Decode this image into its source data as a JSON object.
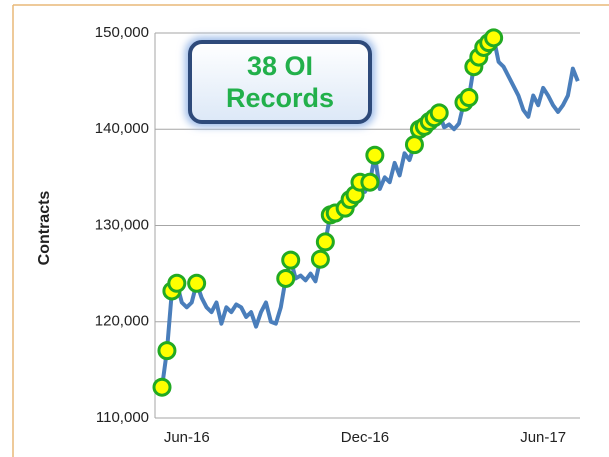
{
  "chart_data": {
    "type": "line",
    "y_label": "Contracts",
    "annotation": [
      "38 OI",
      "Records"
    ],
    "categories": [
      null,
      null,
      null,
      null,
      null,
      "Jun-16",
      null,
      null,
      null,
      null,
      null,
      null,
      null,
      null,
      null,
      null,
      null,
      null,
      null,
      null,
      null,
      null,
      null,
      null,
      null,
      null,
      null,
      null,
      null,
      null,
      null,
      null,
      null,
      null,
      null,
      null,
      null,
      null,
      null,
      null,
      null,
      "Dec-16",
      null,
      null,
      null,
      null,
      null,
      null,
      null,
      null,
      null,
      null,
      null,
      null,
      null,
      null,
      null,
      null,
      null,
      null,
      null,
      null,
      null,
      null,
      null,
      null,
      null,
      null,
      null,
      null,
      null,
      null,
      null,
      null,
      null,
      null,
      null,
      "Jun-17",
      null,
      null,
      null,
      null,
      null,
      null,
      null
    ],
    "series": [
      {
        "color": "#4a7ebb",
        "values": [
          113200,
          117000,
          123200,
          124000,
          122000,
          121500,
          122000,
          124000,
          122500,
          121500,
          121000,
          122000,
          119800,
          121500,
          121000,
          121800,
          121500,
          120500,
          121000,
          119500,
          121000,
          122000,
          120000,
          119800,
          121500,
          124500,
          126400,
          124500,
          124800,
          124300,
          125000,
          124200,
          126500,
          128300,
          131100,
          131300,
          131500,
          131800,
          132700,
          133200,
          134500,
          133500,
          134500,
          137300,
          133800,
          135000,
          134500,
          136500,
          135200,
          137500,
          136800,
          138400,
          140000,
          140300,
          140800,
          141200,
          141700,
          140200,
          140500,
          140000,
          140600,
          142800,
          143300,
          146500,
          147500,
          148500,
          149000,
          149500,
          147000,
          146500,
          145500,
          144500,
          143500,
          142000,
          141300,
          143500,
          142500,
          144300,
          143500,
          142500,
          141800,
          142500,
          143500,
          146300,
          145000
        ]
      },
      {
        "color": "#ffff00",
        "edge": "#22aa22",
        "values": [
          113200,
          117000,
          123200,
          124000,
          null,
          null,
          null,
          124000,
          null,
          null,
          null,
          null,
          null,
          null,
          null,
          null,
          null,
          null,
          null,
          null,
          null,
          null,
          null,
          null,
          null,
          124500,
          126400,
          null,
          null,
          null,
          null,
          null,
          126500,
          128300,
          131100,
          131300,
          null,
          131800,
          132700,
          133200,
          134500,
          null,
          134500,
          137300,
          null,
          null,
          null,
          null,
          null,
          null,
          null,
          138400,
          140000,
          140300,
          140800,
          141200,
          141700,
          null,
          null,
          null,
          null,
          142800,
          143300,
          146500,
          147500,
          148500,
          149000,
          149500,
          null,
          null,
          null,
          null,
          null,
          null,
          null,
          null,
          null,
          null,
          null,
          null,
          null,
          null,
          null,
          null,
          null
        ]
      }
    ],
    "ylim": [
      110000,
      150000
    ],
    "yticks": [
      {
        "value": 110000,
        "label": "110,000"
      },
      {
        "value": 120000,
        "label": "120,000"
      },
      {
        "value": 130000,
        "label": "130,000"
      },
      {
        "value": 140000,
        "label": "140,000"
      },
      {
        "value": 150000,
        "label": "150,000"
      }
    ],
    "grid": true
  }
}
